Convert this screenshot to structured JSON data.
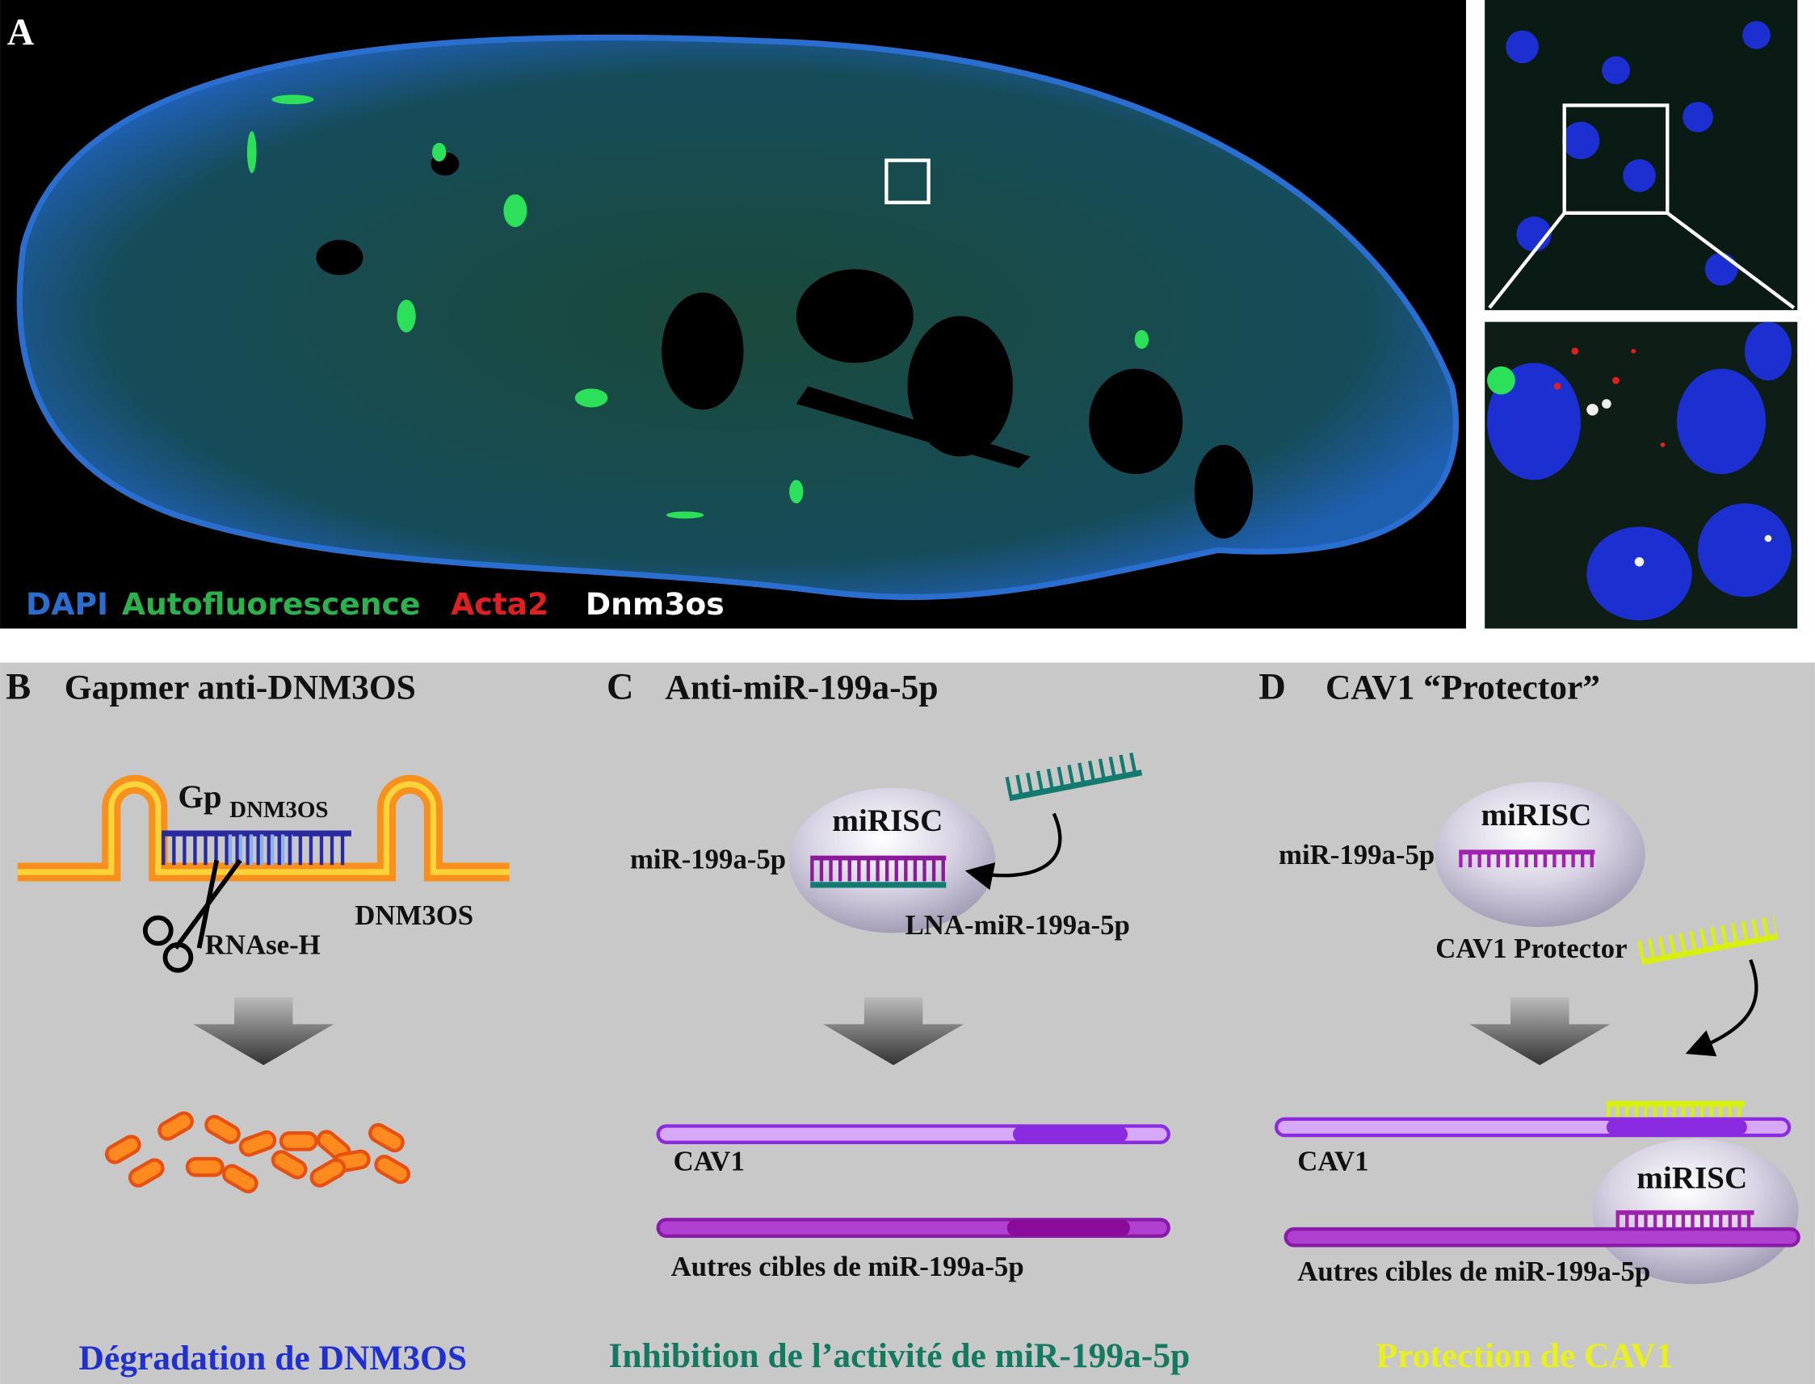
{
  "panel_a": {
    "label": "A",
    "legend": [
      "DAPI",
      "Autofluorescence",
      "Acta2",
      "Dnm3os"
    ]
  },
  "panel_b": {
    "label": "B",
    "title": "Gapmer anti-DNM3OS",
    "gapmer": "Gp",
    "gapmer_sub": "DNM3OS",
    "rna": "DNM3OS",
    "enzyme": "RNAse-H",
    "result": "Dégradation de DNM3OS"
  },
  "panel_c": {
    "label": "C",
    "title": "Anti-miR-199a-5p",
    "complex": "miRISC",
    "mirna": "miR-199a-5p",
    "inhibitor": "LNA-miR-199a-5p",
    "target": "CAV1",
    "other_targets": "Autres cibles de miR-199a-5p",
    "result": "Inhibition de l’activité de miR-199a-5p"
  },
  "panel_d": {
    "label": "D",
    "title": "CAV1 “Protector”",
    "complex": "miRISC",
    "mirna": "miR-199a-5p",
    "protector": "CAV1 Protector",
    "target": "CAV1",
    "complex_2": "miRISC",
    "other_targets": "Autres cibles de miR-199a-5p",
    "result": "Protection de CAV1"
  }
}
